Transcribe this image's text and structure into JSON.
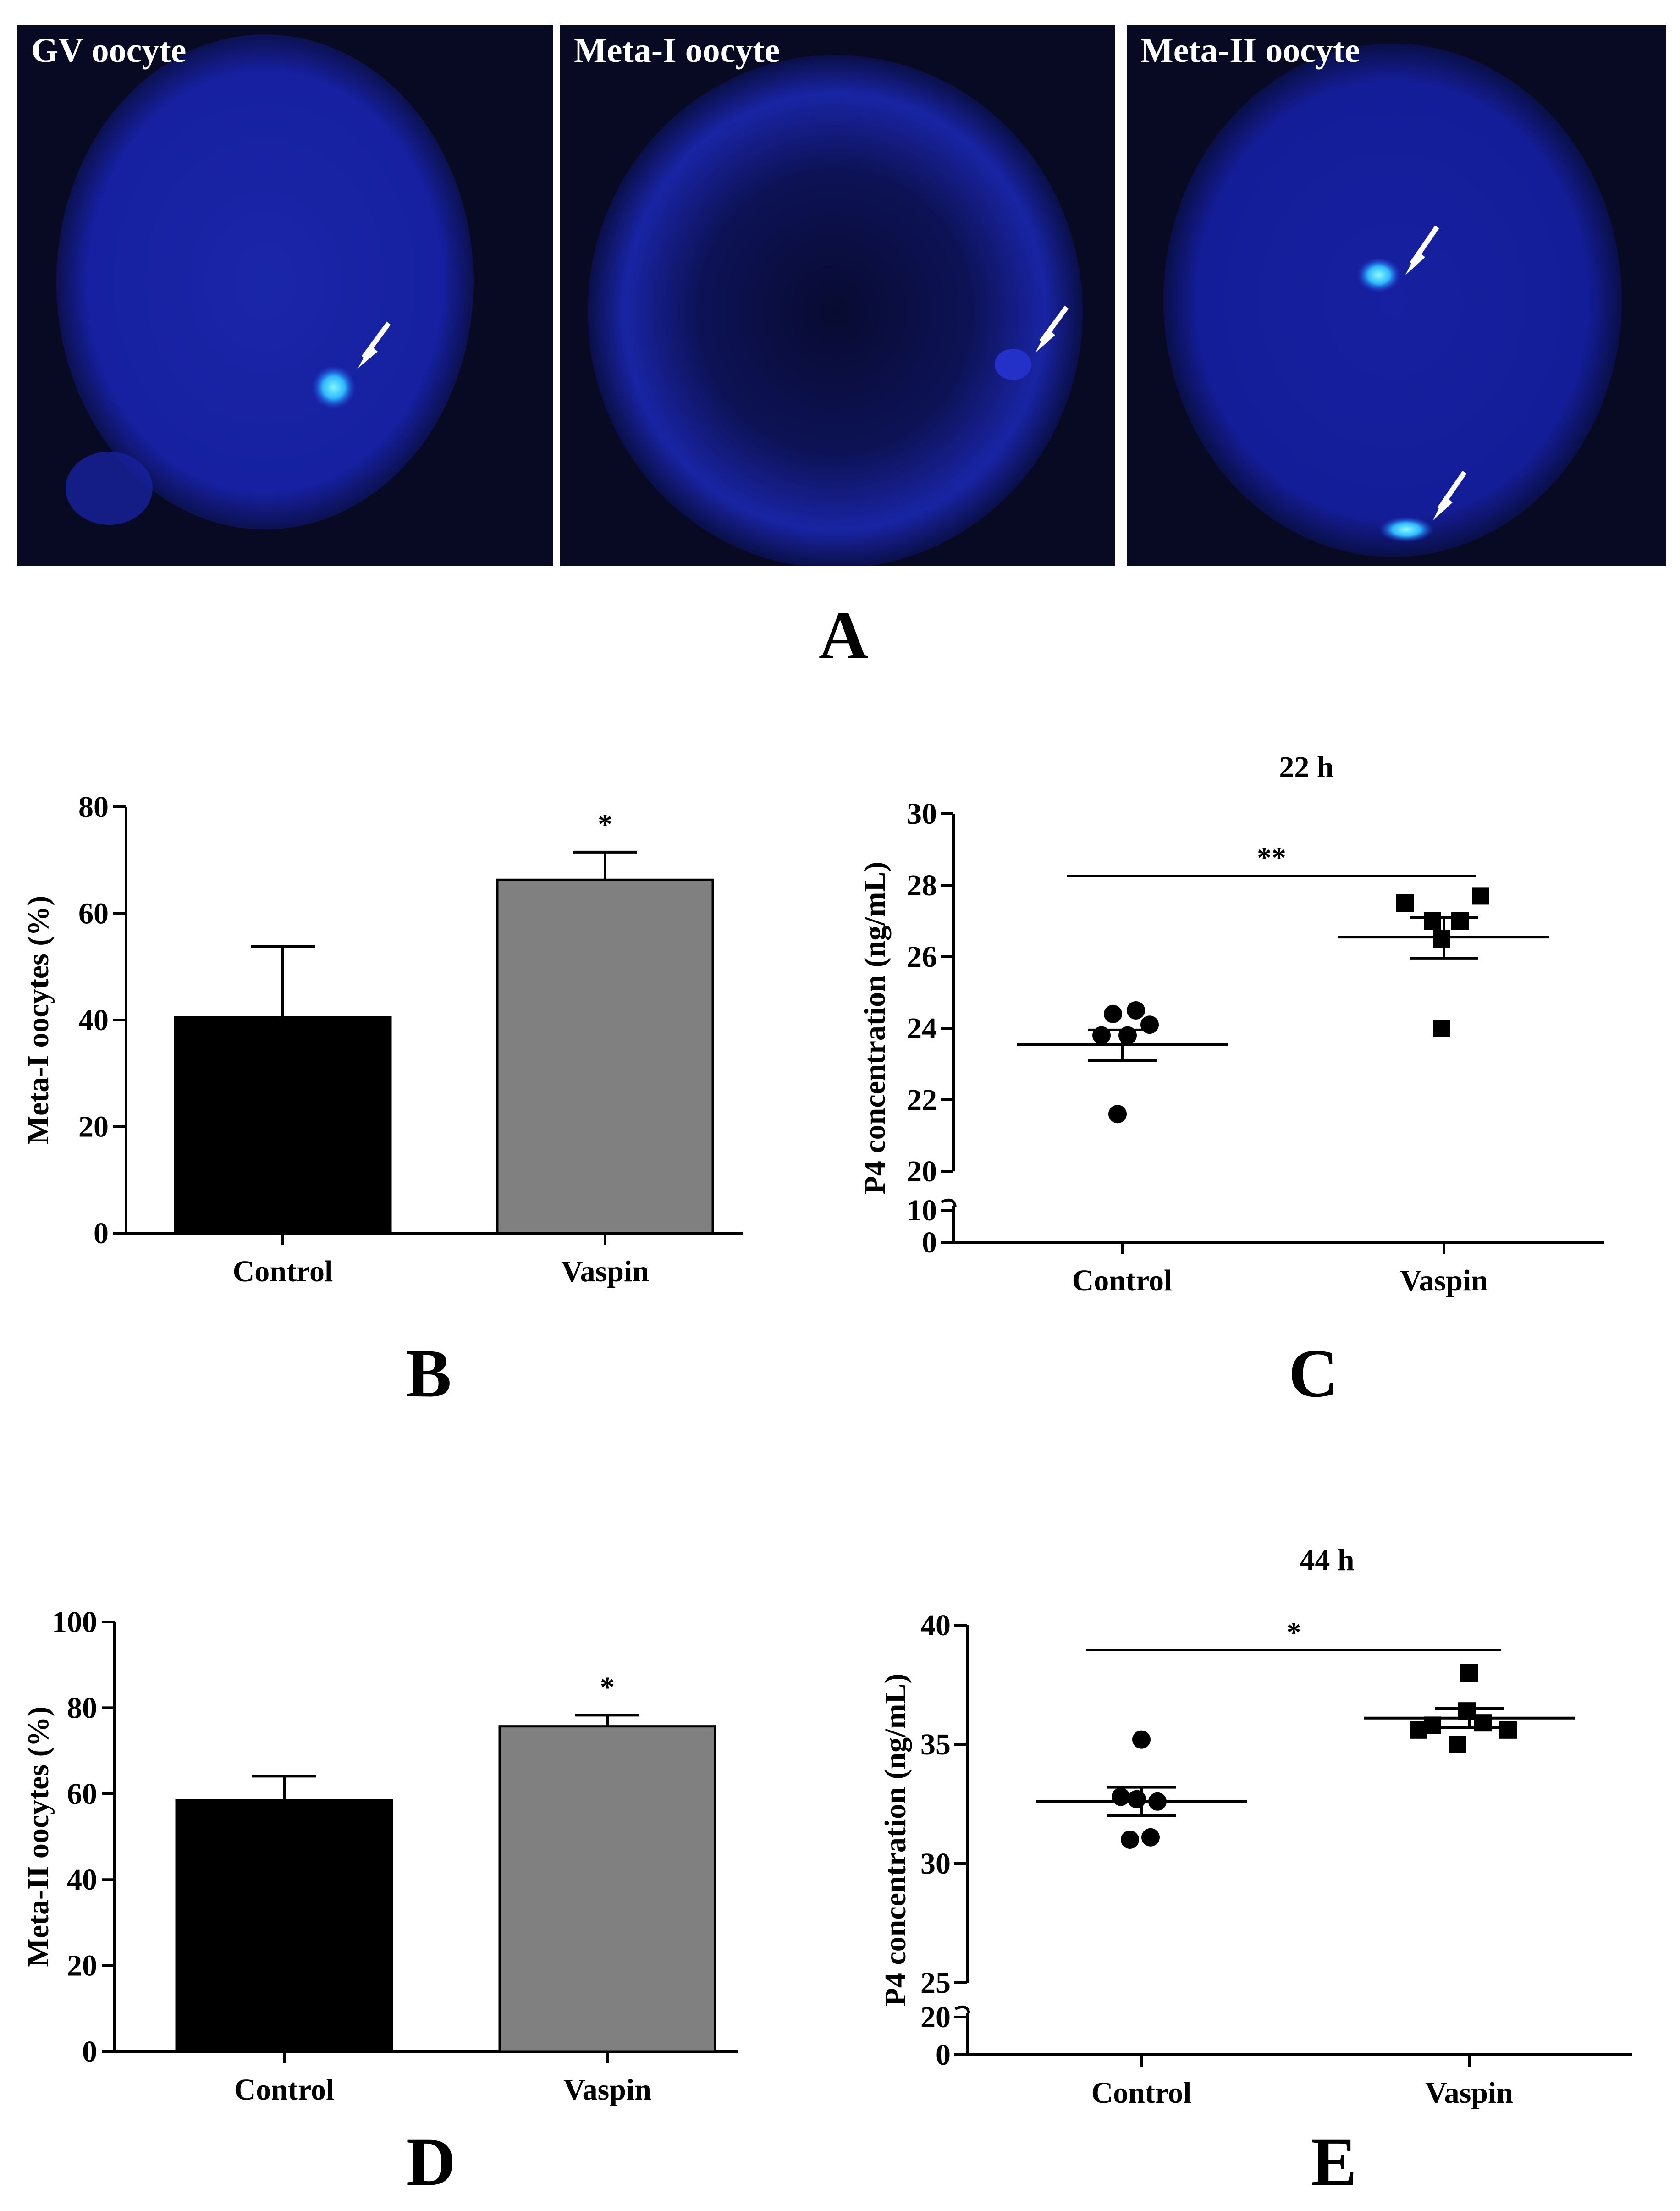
{
  "panel_a": {
    "images": [
      {
        "label": "GV oocyte"
      },
      {
        "label": "Meta-I oocyte"
      },
      {
        "label": "Meta-II oocyte"
      }
    ],
    "letter": "A"
  },
  "panel_letters": {
    "b": "B",
    "c": "C",
    "d": "D",
    "e": "E"
  },
  "colors": {
    "control_bar": "#000000",
    "vaspin_bar": "#808080",
    "fluorescence": "#1a2fd6",
    "chromatin": "#4fd8ff"
  },
  "chart_data": [
    {
      "id": "B",
      "type": "bar",
      "title": "",
      "categories": [
        "Control",
        "Vaspin"
      ],
      "values": [
        40.5,
        66.3
      ],
      "errors": [
        13.3,
        5.2
      ],
      "significance": [
        "",
        "*"
      ],
      "ylabel": "Meta-I oocytes (%)",
      "ylim": [
        0,
        80
      ],
      "yticks": [
        0,
        20,
        40,
        60,
        80
      ]
    },
    {
      "id": "C",
      "type": "scatter",
      "title": "22 h",
      "categories": [
        "Control",
        "Vaspin"
      ],
      "ylabel": "P4 concentration (ng/mL)",
      "yticks_upper": [
        20,
        22,
        24,
        26,
        28,
        30
      ],
      "yticks_lower": [
        0,
        10
      ],
      "series": [
        {
          "name": "Control",
          "marker": "circle",
          "values": [
            24.4,
            24.5,
            23.8,
            23.8,
            24.1,
            21.6
          ],
          "mean": 23.55,
          "sem_low": 23.1,
          "sem_high": 23.95
        },
        {
          "name": "Vaspin",
          "marker": "square",
          "values": [
            27.5,
            27.7,
            27.0,
            27.0,
            26.5,
            24.0
          ],
          "mean": 26.55,
          "sem_low": 25.95,
          "sem_high": 27.1
        }
      ],
      "significance": "**"
    },
    {
      "id": "D",
      "type": "bar",
      "title": "",
      "categories": [
        "Control",
        "Vaspin"
      ],
      "values": [
        58.5,
        75.7
      ],
      "errors": [
        5.6,
        2.6
      ],
      "significance": [
        "",
        "*"
      ],
      "ylabel": "Meta-II oocytes (%)",
      "ylim": [
        0,
        100
      ],
      "yticks": [
        0,
        20,
        40,
        60,
        80,
        100
      ]
    },
    {
      "id": "E",
      "type": "scatter",
      "title": "44 h",
      "categories": [
        "Control",
        "Vaspin"
      ],
      "ylabel": "P4 concentration (ng/mL)",
      "yticks_upper": [
        25,
        30,
        35,
        40
      ],
      "yticks_lower": [
        0,
        20
      ],
      "series": [
        {
          "name": "Control",
          "marker": "circle",
          "values": [
            35.2,
            32.8,
            32.7,
            32.6,
            31.0,
            31.1
          ],
          "mean": 32.6,
          "sem_low": 32.0,
          "sem_high": 33.2
        },
        {
          "name": "Vaspin",
          "marker": "square",
          "values": [
            38.0,
            36.4,
            35.8,
            35.6,
            35.9,
            35.0
          ],
          "mean": 36.1,
          "sem_low": 35.7,
          "sem_high": 36.5
        },
        {
          "name": "",
          "marker": "square",
          "values": [
            35.6
          ],
          "mean": null
        }
      ],
      "significance": "*"
    }
  ]
}
